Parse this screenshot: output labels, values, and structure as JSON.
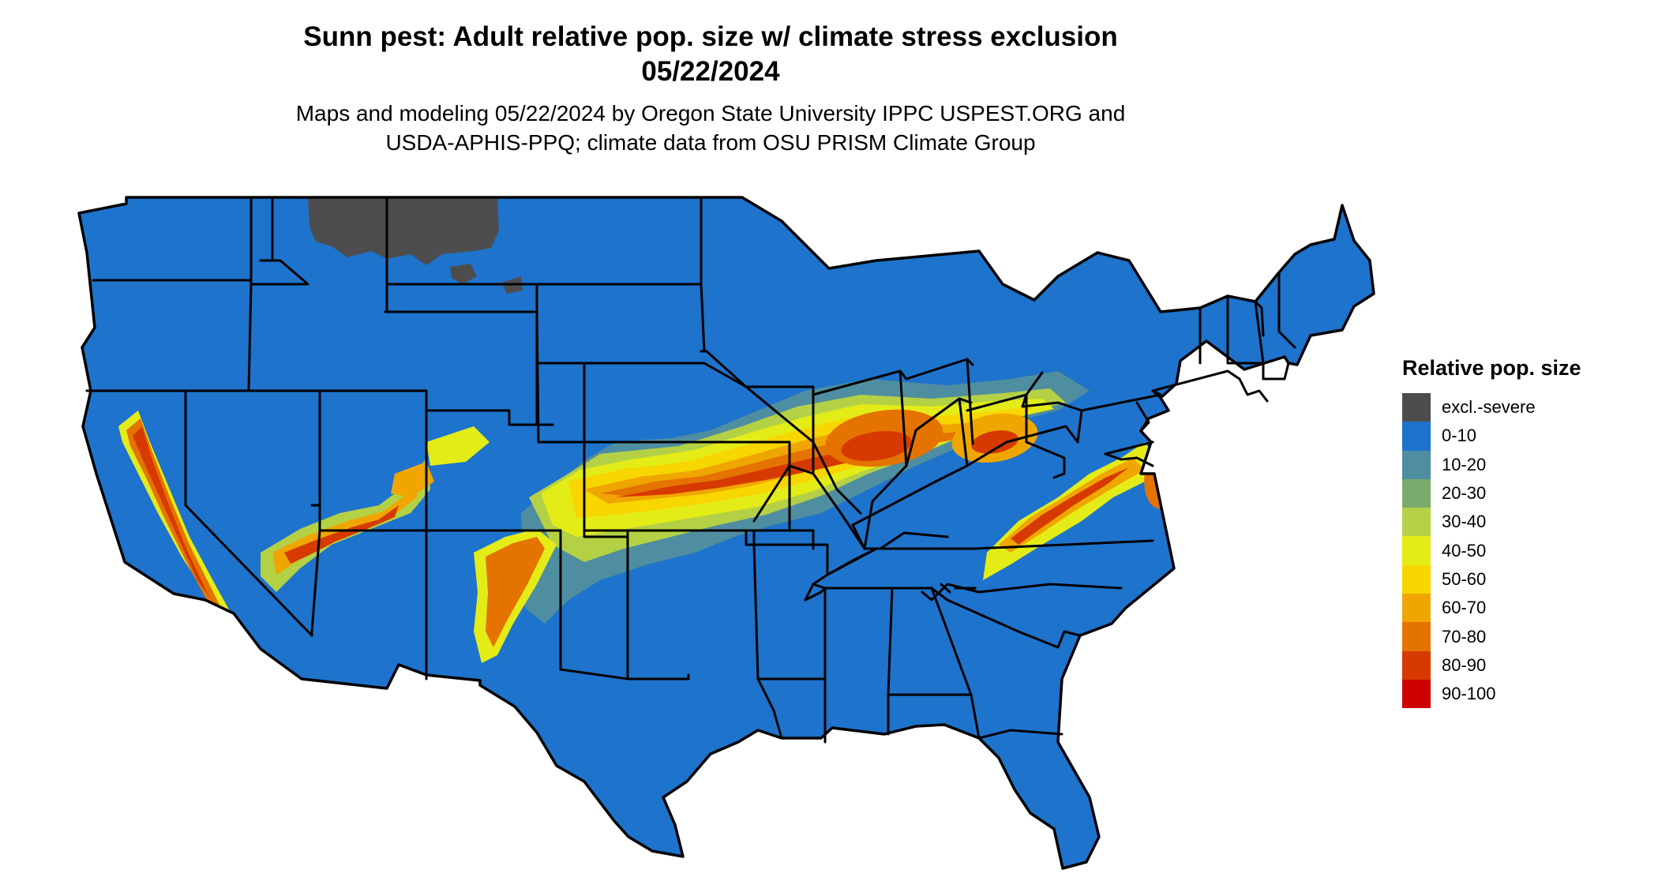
{
  "title": {
    "line1": "Sunn pest: Adult relative pop. size w/ climate stress exclusion",
    "line2": "05/22/2024"
  },
  "subtitle": {
    "line1": "Maps and modeling 05/22/2024 by Oregon State University IPPC USPEST.ORG and",
    "line2": "USDA-APHIS-PPQ; climate data from OSU PRISM Climate Group"
  },
  "legend": {
    "title": "Relative pop. size",
    "items": [
      {
        "label": "excl.-severe",
        "color": "#4d4d4f"
      },
      {
        "label": "0-10",
        "color": "#1e73cc"
      },
      {
        "label": "10-20",
        "color": "#4f8ea0"
      },
      {
        "label": "20-30",
        "color": "#7aab6c"
      },
      {
        "label": "30-40",
        "color": "#b4d145"
      },
      {
        "label": "40-50",
        "color": "#e4ec17"
      },
      {
        "label": "50-60",
        "color": "#f8d600"
      },
      {
        "label": "60-70",
        "color": "#f0a600"
      },
      {
        "label": "70-80",
        "color": "#e57300"
      },
      {
        "label": "80-90",
        "color": "#d63a00"
      },
      {
        "label": "90-100",
        "color": "#cc0000"
      }
    ]
  },
  "map": {
    "region": "Contiguous United States",
    "background_class": "0-10",
    "hotspots": [
      "central Plains belt (Kansas–Missouri)",
      "Illinois–Indiana–Ohio",
      "Appalachians / Virginia–Maryland",
      "California Central Valley and mountains",
      "Southwest mountains (Arizona–New Mexico–Colorado)"
    ],
    "excluded_area": "northern Montana"
  }
}
